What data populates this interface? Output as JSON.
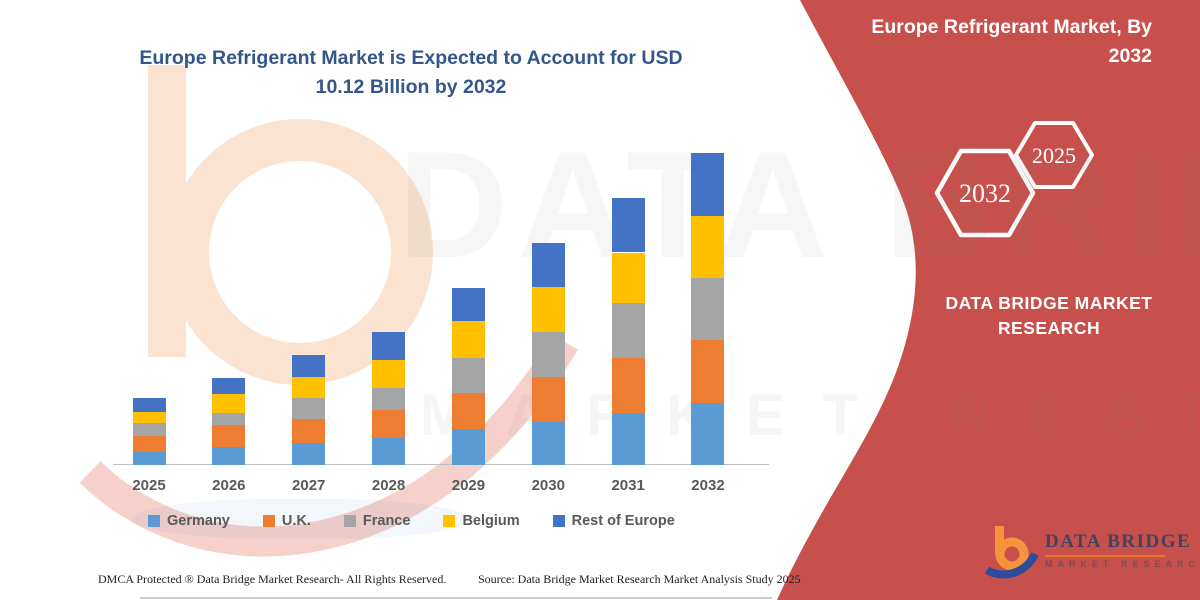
{
  "chart": {
    "title_lines": {
      "l1": "Europe Refrigerant Market is Expected to Account for USD",
      "l2": "10.12 Billion by 2032"
    }
  },
  "chart_data": {
    "type": "bar",
    "stacked": true,
    "title": "Europe Refrigerant Market is Expected to Account for USD 10.12 Billion by 2032",
    "unit": "USD Billion",
    "categories": [
      "2025",
      "2026",
      "2027",
      "2028",
      "2029",
      "2030",
      "2031",
      "2032"
    ],
    "series": [
      {
        "name": "Germany",
        "color": "#5B9BD5",
        "values": [
          0.43,
          0.59,
          0.7,
          0.87,
          1.17,
          1.41,
          1.68,
          2.0
        ]
      },
      {
        "name": "U.K.",
        "color": "#ED7D31",
        "values": [
          0.51,
          0.7,
          0.81,
          0.92,
          1.18,
          1.46,
          1.79,
          2.06
        ]
      },
      {
        "name": "France",
        "color": "#A5A5A5",
        "values": [
          0.41,
          0.4,
          0.65,
          0.7,
          1.14,
          1.46,
          1.79,
          2.0
        ]
      },
      {
        "name": "Belgium",
        "color": "#FFC000",
        "values": [
          0.38,
          0.61,
          0.7,
          0.92,
          1.17,
          1.44,
          1.64,
          2.02
        ]
      },
      {
        "name": "Rest of Europe",
        "color": "#4472C4",
        "values": [
          0.44,
          0.54,
          0.7,
          0.92,
          1.08,
          1.43,
          1.77,
          2.04
        ]
      }
    ],
    "totals": [
      2.17,
      2.84,
      3.56,
      4.33,
      5.74,
      7.2,
      8.67,
      10.12
    ],
    "highlight_total": "10.12",
    "ylim": [
      0,
      10.5
    ],
    "grid": false,
    "legend_position": "bottom",
    "xlabel": "",
    "ylabel": ""
  },
  "side_panel": {
    "accent_red": "#C8504C",
    "title_lines": {
      "l1": "Europe Refrigerant Market, By",
      "l2": "2032"
    },
    "hexagons": {
      "big": "2032",
      "small": "2025"
    },
    "brand_lines": {
      "l1": "DATA BRIDGE MARKET",
      "l2": "RESEARCH"
    }
  },
  "logo": {
    "name": "DATA BRIDGE",
    "tagline": "MARKET RESEARCH"
  },
  "watermark": {
    "line1": "DATA BRIDGE",
    "line2": "MARKET RESEARCH"
  },
  "footer": {
    "dmca": "DMCA Protected ® Data Bridge Market Research-  All Rights Reserved.",
    "source": "Source: Data Bridge Market Research  Market Analysis Study 2025"
  }
}
